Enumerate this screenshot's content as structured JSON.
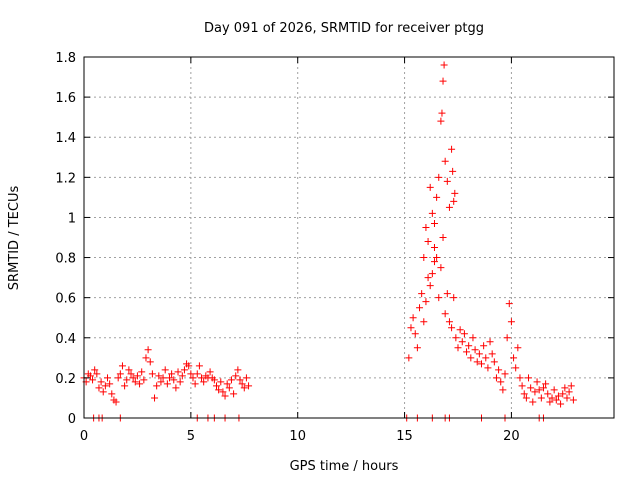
{
  "chart_data": {
    "type": "scatter",
    "title": "Day 091 of 2026, SRMTID for receiver ptgg",
    "xlabel": "GPS time / hours",
    "ylabel": "SRMTID / TECUs",
    "xlim": [
      0,
      24.8
    ],
    "ylim": [
      0,
      1.8
    ],
    "xticks": [
      0,
      5,
      10,
      15,
      20
    ],
    "xtick_labels": [
      "0",
      "5",
      "10",
      "15",
      "20"
    ],
    "yticks": [
      0,
      0.2,
      0.4,
      0.6,
      0.8,
      1.0,
      1.2,
      1.4,
      1.6,
      1.8
    ],
    "ytick_labels": [
      "0",
      "0.2",
      "0.4",
      "0.6",
      "0.8",
      "1",
      "1.2",
      "1.4",
      "1.6",
      "1.8"
    ],
    "grid": true,
    "marker": "+",
    "color": "#ff0000",
    "series": [
      {
        "name": "SRMTID",
        "points": [
          [
            0.0,
            0.2
          ],
          [
            0.1,
            0.18
          ],
          [
            0.2,
            0.22
          ],
          [
            0.3,
            0.21
          ],
          [
            0.4,
            0.19
          ],
          [
            0.5,
            0.24
          ],
          [
            0.6,
            0.22
          ],
          [
            0.7,
            0.15
          ],
          [
            0.8,
            0.18
          ],
          [
            0.9,
            0.13
          ],
          [
            1.0,
            0.16
          ],
          [
            1.1,
            0.2
          ],
          [
            1.2,
            0.17
          ],
          [
            1.3,
            0.12
          ],
          [
            1.4,
            0.09
          ],
          [
            1.5,
            0.08
          ],
          [
            1.6,
            0.2
          ],
          [
            1.7,
            0.22
          ],
          [
            1.8,
            0.26
          ],
          [
            1.9,
            0.16
          ],
          [
            2.0,
            0.19
          ],
          [
            2.1,
            0.24
          ],
          [
            2.2,
            0.22
          ],
          [
            2.3,
            0.2
          ],
          [
            2.4,
            0.18
          ],
          [
            2.5,
            0.21
          ],
          [
            2.6,
            0.17
          ],
          [
            2.7,
            0.23
          ],
          [
            2.8,
            0.19
          ],
          [
            2.9,
            0.3
          ],
          [
            3.0,
            0.34
          ],
          [
            3.1,
            0.28
          ],
          [
            3.2,
            0.22
          ],
          [
            3.3,
            0.1
          ],
          [
            3.4,
            0.16
          ],
          [
            3.5,
            0.21
          ],
          [
            3.6,
            0.18
          ],
          [
            3.7,
            0.2
          ],
          [
            3.8,
            0.24
          ],
          [
            3.9,
            0.17
          ],
          [
            4.0,
            0.2
          ],
          [
            4.1,
            0.22
          ],
          [
            4.2,
            0.19
          ],
          [
            4.3,
            0.15
          ],
          [
            4.4,
            0.23
          ],
          [
            4.5,
            0.18
          ],
          [
            4.6,
            0.21
          ],
          [
            4.7,
            0.24
          ],
          [
            4.8,
            0.27
          ],
          [
            4.9,
            0.26
          ],
          [
            5.0,
            0.22
          ],
          [
            5.1,
            0.2
          ],
          [
            5.2,
            0.17
          ],
          [
            5.3,
            0.22
          ],
          [
            5.4,
            0.26
          ],
          [
            5.5,
            0.2
          ],
          [
            5.6,
            0.18
          ],
          [
            5.7,
            0.21
          ],
          [
            5.8,
            0.2
          ],
          [
            5.9,
            0.23
          ],
          [
            6.0,
            0.2
          ],
          [
            6.1,
            0.19
          ],
          [
            6.2,
            0.16
          ],
          [
            6.3,
            0.14
          ],
          [
            6.4,
            0.18
          ],
          [
            6.5,
            0.13
          ],
          [
            6.6,
            0.11
          ],
          [
            6.7,
            0.17
          ],
          [
            6.8,
            0.15
          ],
          [
            6.9,
            0.19
          ],
          [
            7.0,
            0.12
          ],
          [
            7.1,
            0.21
          ],
          [
            7.2,
            0.24
          ],
          [
            7.3,
            0.19
          ],
          [
            7.4,
            0.17
          ],
          [
            7.5,
            0.15
          ],
          [
            7.6,
            0.2
          ],
          [
            7.7,
            0.16
          ],
          [
            0.45,
            0.0
          ],
          [
            0.7,
            0.0
          ],
          [
            0.85,
            0.0
          ],
          [
            1.7,
            0.0
          ],
          [
            5.3,
            0.0
          ],
          [
            5.8,
            0.0
          ],
          [
            6.1,
            0.0
          ],
          [
            6.6,
            0.0
          ],
          [
            7.25,
            0.0
          ],
          [
            15.1,
            0.0
          ],
          [
            15.6,
            0.0
          ],
          [
            16.3,
            0.0
          ],
          [
            16.9,
            0.0
          ],
          [
            17.1,
            0.0
          ],
          [
            18.6,
            0.0
          ],
          [
            19.7,
            0.0
          ],
          [
            21.3,
            0.0
          ],
          [
            21.5,
            0.0
          ],
          [
            15.2,
            0.3
          ],
          [
            15.3,
            0.45
          ],
          [
            15.4,
            0.5
          ],
          [
            15.5,
            0.42
          ],
          [
            15.6,
            0.35
          ],
          [
            15.7,
            0.55
          ],
          [
            15.8,
            0.62
          ],
          [
            15.9,
            0.48
          ],
          [
            16.0,
            0.58
          ],
          [
            16.1,
            0.7
          ],
          [
            16.2,
            0.66
          ],
          [
            16.3,
            0.72
          ],
          [
            16.4,
            0.85
          ],
          [
            16.5,
            0.8
          ],
          [
            16.6,
            0.6
          ],
          [
            16.7,
            0.75
          ],
          [
            16.8,
            0.9
          ],
          [
            16.9,
            0.52
          ],
          [
            17.0,
            0.62
          ],
          [
            17.1,
            0.48
          ],
          [
            17.2,
            0.45
          ],
          [
            17.3,
            0.6
          ],
          [
            17.4,
            0.4
          ],
          [
            17.5,
            0.35
          ],
          [
            17.6,
            0.44
          ],
          [
            17.7,
            0.38
          ],
          [
            17.8,
            0.42
          ],
          [
            17.9,
            0.33
          ],
          [
            18.0,
            0.36
          ],
          [
            18.1,
            0.3
          ],
          [
            18.2,
            0.4
          ],
          [
            18.3,
            0.34
          ],
          [
            18.4,
            0.28
          ],
          [
            18.5,
            0.32
          ],
          [
            18.6,
            0.27
          ],
          [
            18.7,
            0.36
          ],
          [
            18.8,
            0.3
          ],
          [
            18.9,
            0.25
          ],
          [
            19.0,
            0.38
          ],
          [
            19.1,
            0.32
          ],
          [
            19.2,
            0.28
          ],
          [
            19.3,
            0.2
          ],
          [
            19.4,
            0.24
          ],
          [
            19.5,
            0.18
          ],
          [
            19.6,
            0.14
          ],
          [
            19.7,
            0.22
          ],
          [
            19.8,
            0.4
          ],
          [
            19.9,
            0.57
          ],
          [
            20.0,
            0.48
          ],
          [
            20.1,
            0.3
          ],
          [
            20.2,
            0.25
          ],
          [
            20.3,
            0.35
          ],
          [
            20.4,
            0.2
          ],
          [
            20.5,
            0.16
          ],
          [
            20.6,
            0.12
          ],
          [
            20.7,
            0.1
          ],
          [
            20.8,
            0.2
          ],
          [
            20.9,
            0.15
          ],
          [
            21.0,
            0.08
          ],
          [
            21.1,
            0.13
          ],
          [
            21.2,
            0.18
          ],
          [
            21.3,
            0.14
          ],
          [
            21.4,
            0.1
          ],
          [
            21.5,
            0.15
          ],
          [
            21.6,
            0.17
          ],
          [
            21.7,
            0.12
          ],
          [
            21.8,
            0.08
          ],
          [
            21.9,
            0.1
          ],
          [
            22.0,
            0.14
          ],
          [
            22.1,
            0.09
          ],
          [
            22.2,
            0.11
          ],
          [
            22.3,
            0.07
          ],
          [
            22.4,
            0.12
          ],
          [
            22.5,
            0.15
          ],
          [
            22.6,
            0.1
          ],
          [
            22.7,
            0.13
          ],
          [
            22.8,
            0.16
          ],
          [
            22.9,
            0.09
          ],
          [
            16.0,
            0.95
          ],
          [
            16.1,
            0.88
          ],
          [
            16.3,
            1.02
          ],
          [
            16.4,
            0.97
          ],
          [
            16.5,
            1.1
          ],
          [
            16.6,
            1.2
          ],
          [
            16.7,
            1.48
          ],
          [
            16.75,
            1.52
          ],
          [
            16.8,
            1.68
          ],
          [
            16.85,
            1.76
          ],
          [
            16.9,
            1.28
          ],
          [
            17.0,
            1.18
          ],
          [
            17.1,
            1.05
          ],
          [
            17.2,
            1.34
          ],
          [
            17.25,
            1.23
          ],
          [
            17.3,
            1.08
          ],
          [
            17.35,
            1.12
          ],
          [
            16.2,
            1.15
          ],
          [
            16.4,
            0.78
          ],
          [
            15.9,
            0.8
          ]
        ]
      }
    ]
  }
}
